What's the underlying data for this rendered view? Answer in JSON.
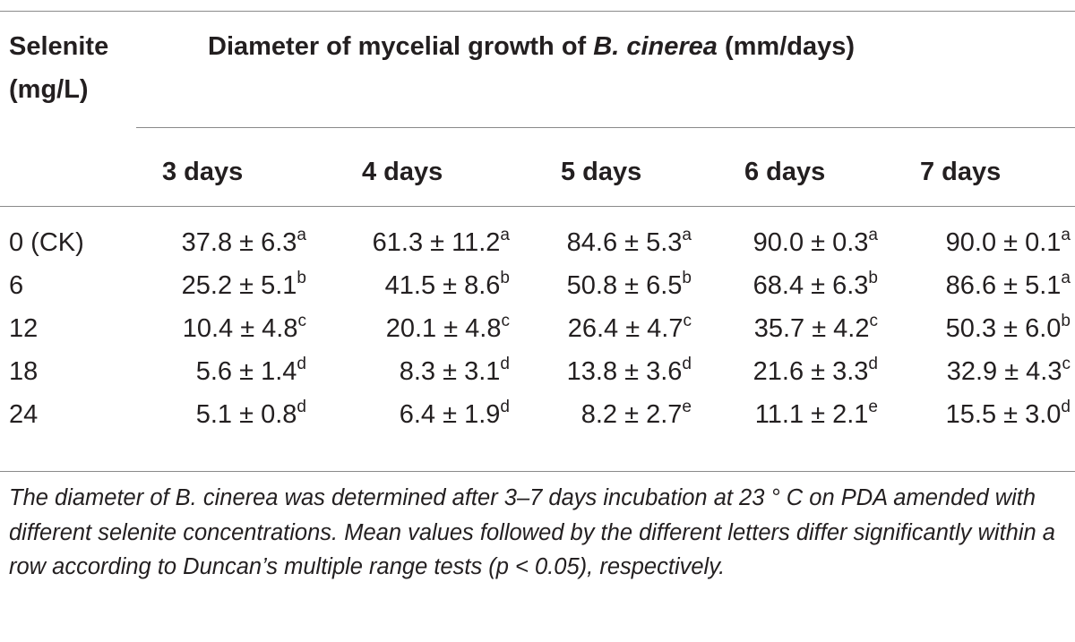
{
  "table": {
    "stub_header": [
      "Selenite",
      "(mg/L)"
    ],
    "spanner": {
      "prefix": "Diameter of mycelial growth of ",
      "italic": "B. cinerea",
      "suffix": " (mm/days)"
    },
    "columns": [
      "3 days",
      "4 days",
      "5 days",
      "6 days",
      "7 days"
    ],
    "rows": [
      {
        "label": "0 (CK)",
        "cells": [
          {
            "value": "37.8 ± 6.3",
            "letter": "a"
          },
          {
            "value": "61.3 ± 11.2",
            "letter": "a"
          },
          {
            "value": "84.6 ± 5.3",
            "letter": "a"
          },
          {
            "value": "90.0 ± 0.3",
            "letter": "a"
          },
          {
            "value": "90.0 ± 0.1",
            "letter": "a"
          }
        ]
      },
      {
        "label": "6",
        "cells": [
          {
            "value": "25.2 ± 5.1",
            "letter": "b"
          },
          {
            "value": "41.5 ± 8.6",
            "letter": "b"
          },
          {
            "value": "50.8 ± 6.5",
            "letter": "b"
          },
          {
            "value": "68.4 ± 6.3",
            "letter": "b"
          },
          {
            "value": "86.6 ± 5.1",
            "letter": "a"
          }
        ]
      },
      {
        "label": "12",
        "cells": [
          {
            "value": "10.4 ± 4.8",
            "letter": "c"
          },
          {
            "value": "20.1 ± 4.8",
            "letter": "c"
          },
          {
            "value": "26.4 ± 4.7",
            "letter": "c"
          },
          {
            "value": "35.7 ± 4.2",
            "letter": "c"
          },
          {
            "value": "50.3 ± 6.0",
            "letter": "b"
          }
        ]
      },
      {
        "label": "18",
        "cells": [
          {
            "value": "5.6 ± 1.4",
            "letter": "d"
          },
          {
            "value": "8.3 ± 3.1",
            "letter": "d"
          },
          {
            "value": "13.8 ± 3.6",
            "letter": "d"
          },
          {
            "value": "21.6 ± 3.3",
            "letter": "d"
          },
          {
            "value": "32.9 ± 4.3",
            "letter": "c"
          }
        ]
      },
      {
        "label": "24",
        "cells": [
          {
            "value": "5.1 ± 0.8",
            "letter": "d"
          },
          {
            "value": "6.4 ± 1.9",
            "letter": "d"
          },
          {
            "value": "8.2 ± 2.7",
            "letter": "e"
          },
          {
            "value": "11.1 ± 2.1",
            "letter": "e"
          },
          {
            "value": "15.5 ± 3.0",
            "letter": "d"
          }
        ]
      }
    ],
    "footnote": "The diameter of B. cinerea was determined after 3–7 days incubation at 23 ° C on PDA amended with different selenite concentrations. Mean values followed by the different letters differ significantly within a row according to Duncan’s multiple range tests (p < 0.05), respectively."
  }
}
